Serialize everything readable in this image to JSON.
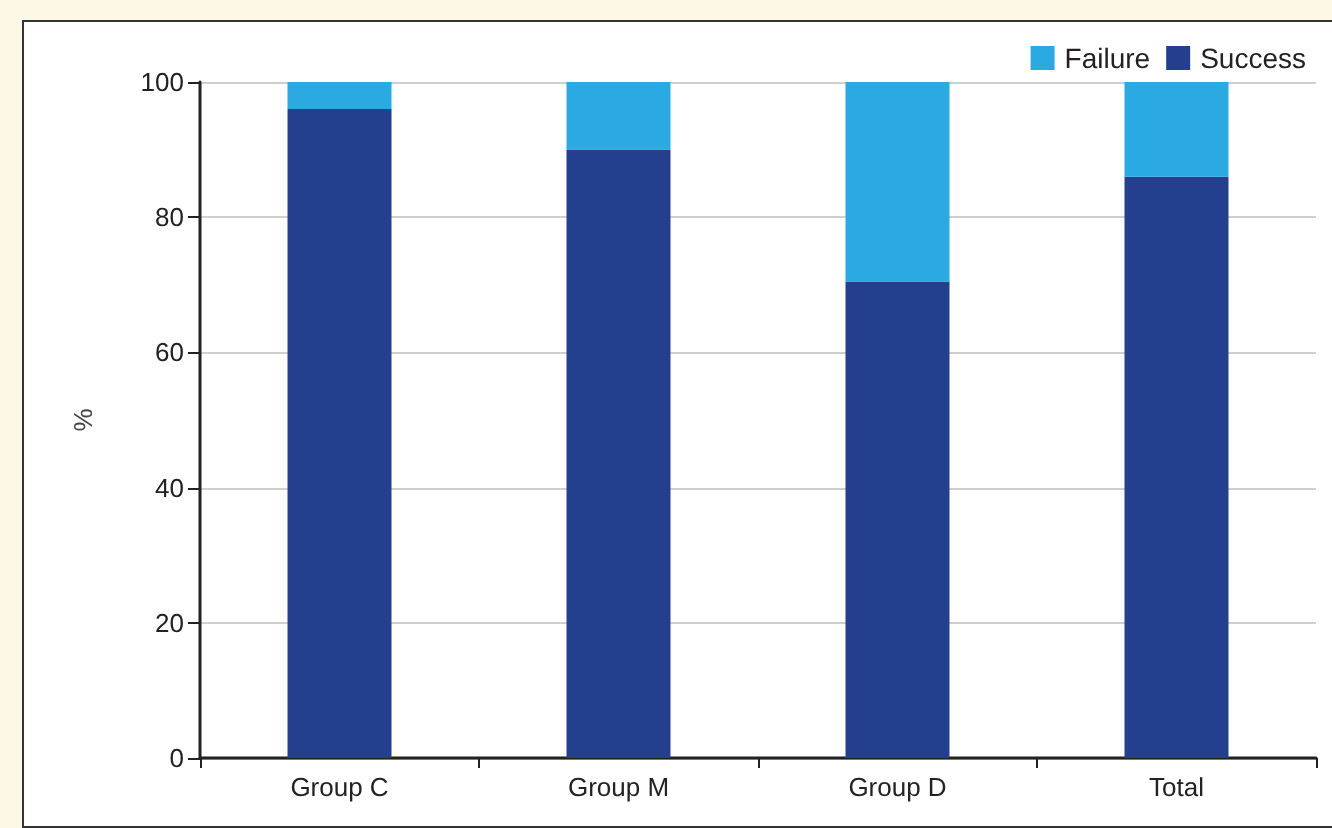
{
  "chart_data": {
    "type": "bar",
    "stacked": true,
    "ylabel": "%",
    "categories": [
      "Group C",
      "Group M",
      "Group D",
      "Total"
    ],
    "series": [
      {
        "name": "Success",
        "color": "#253f8f",
        "values": [
          96,
          90,
          70.5,
          86
        ]
      },
      {
        "name": "Failure",
        "color": "#2ba9e1",
        "values": [
          4,
          10,
          29.5,
          14
        ]
      }
    ],
    "ylim": [
      0,
      100
    ],
    "yticks": [
      0,
      20,
      40,
      60,
      80,
      100
    ],
    "grid": "y",
    "legend": "top right"
  }
}
